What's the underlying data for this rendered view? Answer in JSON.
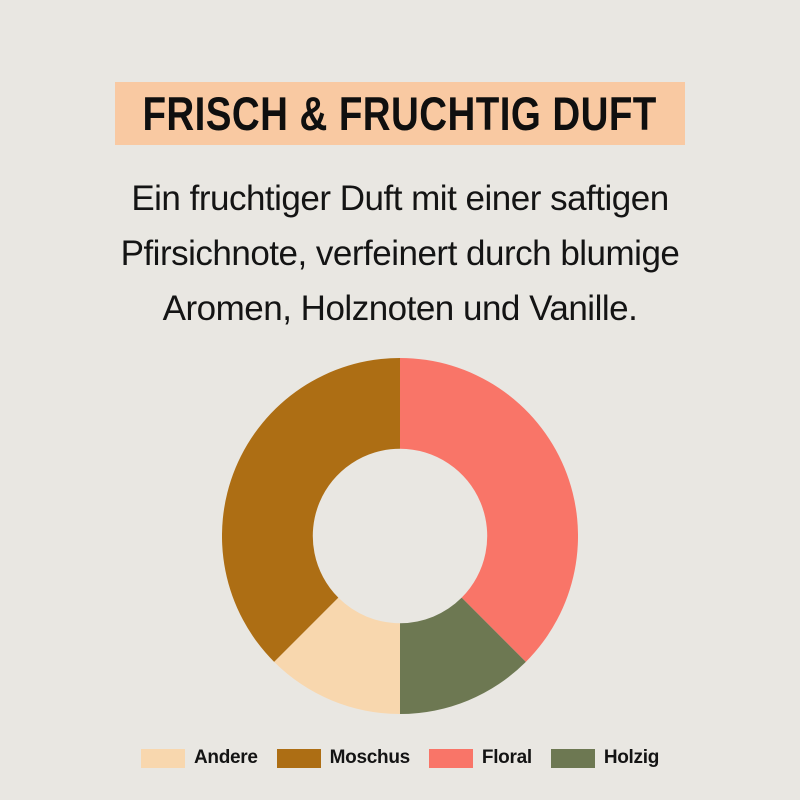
{
  "header": {
    "title": "FRISCH & FRUCHTIG DUFT"
  },
  "description": {
    "lines": [
      "Ein fruchtiger Duft mit einer saftigen",
      "Pfirsichnote, verfeinert durch blumige",
      "Aromen, Holznoten und Vanille."
    ]
  },
  "theme": {
    "background": "#E9E7E2",
    "title_banner_bg": "#F9C9A2",
    "title_text_color": "#0F0F0F",
    "text_color": "#141414"
  },
  "chart_data": {
    "type": "pie",
    "variant": "donut",
    "title": "",
    "direction": "clockwise",
    "start_angle_deg": 0,
    "inner_radius_ratio": 0.49,
    "units": "percent",
    "segments": [
      {
        "label": "Floral",
        "value": 37.5,
        "color": "#F97568"
      },
      {
        "label": "Holzig",
        "value": 12.5,
        "color": "#6D7852"
      },
      {
        "label": "Andere",
        "value": 12.5,
        "color": "#F8D7AE"
      },
      {
        "label": "Moschus",
        "value": 37.5,
        "color": "#AD6E14"
      }
    ],
    "legend": {
      "position": "bottom",
      "items": [
        {
          "label": "Andere",
          "color": "#F8D7AE"
        },
        {
          "label": "Moschus",
          "color": "#AD6E14"
        },
        {
          "label": "Floral",
          "color": "#F97568"
        },
        {
          "label": "Holzig",
          "color": "#6D7852"
        }
      ]
    }
  }
}
